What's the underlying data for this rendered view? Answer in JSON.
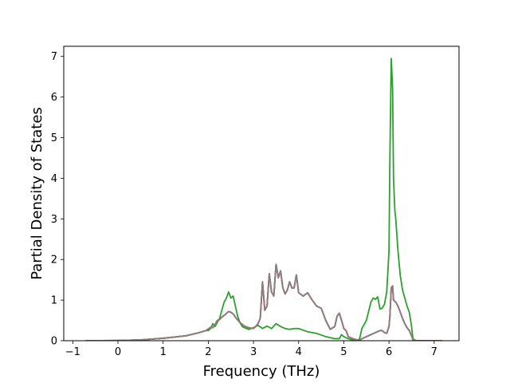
{
  "chart_data": {
    "type": "line",
    "title": "",
    "xlabel": "Frequency (THz)",
    "ylabel": "Partial Density of States",
    "xlim": [
      -1.2,
      7.55
    ],
    "ylim": [
      0,
      7.25
    ],
    "xticks": [
      -1,
      0,
      1,
      2,
      3,
      4,
      5,
      6,
      7
    ],
    "yticks": [
      0,
      1,
      2,
      3,
      4,
      5,
      6,
      7
    ],
    "grid": false,
    "legend": "none",
    "series": [
      {
        "color": "#1f77b4",
        "x": [
          -0.72,
          0.0,
          0.5,
          1.0,
          1.5,
          1.8,
          1.95,
          2.05,
          2.1,
          2.15,
          2.2,
          2.25,
          2.3,
          2.38,
          2.45,
          2.5,
          2.55,
          2.62,
          2.7,
          2.8,
          2.9,
          3.0,
          3.05,
          3.1,
          3.15,
          3.2,
          3.25,
          3.3,
          3.35,
          3.4,
          3.45,
          3.5,
          3.55,
          3.6,
          3.65,
          3.7,
          3.75,
          3.8,
          3.85,
          3.9,
          3.95,
          4.0,
          4.1,
          4.2,
          4.3,
          4.4,
          4.5,
          4.6,
          4.7,
          4.8,
          4.85,
          4.9,
          4.95,
          5.0,
          5.05,
          5.1,
          5.2,
          5.3,
          5.35,
          5.4,
          5.5,
          5.6,
          5.7,
          5.8,
          5.85,
          5.9,
          5.95,
          6.0,
          6.02,
          6.05,
          6.08,
          6.1,
          6.15,
          6.2,
          6.25,
          6.3,
          6.35,
          6.4,
          6.45,
          6.5,
          6.53,
          6.6,
          7.18
        ],
        "y": [
          0.0,
          0.005,
          0.02,
          0.06,
          0.12,
          0.2,
          0.25,
          0.33,
          0.32,
          0.4,
          0.5,
          0.52,
          0.58,
          0.65,
          0.72,
          0.7,
          0.66,
          0.55,
          0.45,
          0.36,
          0.32,
          0.3,
          0.35,
          0.42,
          0.55,
          1.45,
          0.75,
          0.85,
          1.65,
          1.2,
          1.1,
          1.88,
          1.55,
          1.72,
          1.3,
          1.15,
          1.25,
          1.45,
          1.3,
          1.3,
          1.62,
          1.18,
          1.1,
          1.18,
          1.0,
          0.85,
          0.8,
          0.5,
          0.28,
          0.35,
          0.6,
          0.68,
          0.5,
          0.3,
          0.25,
          0.1,
          0.05,
          0.02,
          0.0,
          0.05,
          0.1,
          0.15,
          0.2,
          0.25,
          0.25,
          0.2,
          0.18,
          0.35,
          0.6,
          1.3,
          1.35,
          1.0,
          0.95,
          0.85,
          0.7,
          0.55,
          0.42,
          0.32,
          0.25,
          0.12,
          0.02,
          0.0,
          0.0
        ]
      },
      {
        "color": "#2ca02c",
        "x": [
          -0.72,
          0.0,
          0.5,
          1.0,
          1.5,
          1.8,
          1.95,
          2.0,
          2.05,
          2.1,
          2.15,
          2.2,
          2.25,
          2.3,
          2.35,
          2.4,
          2.45,
          2.5,
          2.55,
          2.6,
          2.65,
          2.7,
          2.75,
          2.8,
          2.9,
          3.0,
          3.1,
          3.2,
          3.3,
          3.4,
          3.5,
          3.6,
          3.7,
          3.8,
          3.9,
          4.0,
          4.2,
          4.4,
          4.6,
          4.8,
          4.9,
          4.95,
          5.0,
          5.1,
          5.2,
          5.3,
          5.35,
          5.4,
          5.5,
          5.6,
          5.65,
          5.7,
          5.75,
          5.8,
          5.85,
          5.9,
          5.95,
          6.0,
          6.02,
          6.05,
          6.08,
          6.1,
          6.13,
          6.15,
          6.2,
          6.25,
          6.3,
          6.35,
          6.4,
          6.45,
          6.5,
          6.53,
          6.6,
          7.18
        ],
        "y": [
          0.0,
          0.005,
          0.02,
          0.06,
          0.12,
          0.2,
          0.25,
          0.25,
          0.3,
          0.42,
          0.35,
          0.45,
          0.55,
          0.75,
          0.95,
          1.05,
          1.2,
          1.05,
          1.1,
          0.85,
          0.6,
          0.45,
          0.35,
          0.32,
          0.28,
          0.32,
          0.38,
          0.3,
          0.36,
          0.3,
          0.42,
          0.35,
          0.3,
          0.28,
          0.3,
          0.3,
          0.22,
          0.18,
          0.1,
          0.05,
          0.05,
          0.15,
          0.1,
          0.05,
          0.02,
          0.0,
          0.05,
          0.3,
          0.5,
          0.95,
          1.05,
          1.02,
          1.08,
          0.78,
          0.8,
          0.9,
          1.2,
          2.2,
          4.5,
          6.95,
          6.2,
          4.0,
          3.2,
          3.0,
          2.2,
          1.6,
          1.25,
          1.05,
          0.85,
          0.7,
          0.35,
          0.05,
          0.0,
          0.0
        ]
      },
      {
        "color": "#d62728",
        "x": [
          -0.72,
          0.0,
          0.5,
          1.0,
          1.5,
          1.8,
          1.95,
          2.05,
          2.1,
          2.15,
          2.2,
          2.25,
          2.3,
          2.38,
          2.45,
          2.5,
          2.55,
          2.62,
          2.7,
          2.8,
          2.9,
          3.0,
          3.05,
          3.1,
          3.15,
          3.2,
          3.25,
          3.3,
          3.35,
          3.4,
          3.45,
          3.5,
          3.55,
          3.6,
          3.65,
          3.7,
          3.75,
          3.8,
          3.85,
          3.9,
          3.95,
          4.0,
          4.1,
          4.2,
          4.3,
          4.4,
          4.5,
          4.6,
          4.7,
          4.8,
          4.85,
          4.9,
          4.95,
          5.0,
          5.05,
          5.1,
          5.2,
          5.3,
          5.35,
          5.4,
          5.5,
          5.6,
          5.7,
          5.8,
          5.85,
          5.9,
          5.95,
          6.0,
          6.02,
          6.05,
          6.08,
          6.1,
          6.15,
          6.2,
          6.25,
          6.3,
          6.35,
          6.4,
          6.45,
          6.5,
          6.53,
          6.6,
          7.18
        ],
        "y": [
          0.0,
          0.005,
          0.02,
          0.06,
          0.12,
          0.2,
          0.25,
          0.33,
          0.32,
          0.4,
          0.5,
          0.52,
          0.58,
          0.65,
          0.72,
          0.7,
          0.66,
          0.55,
          0.45,
          0.36,
          0.32,
          0.3,
          0.35,
          0.42,
          0.55,
          1.45,
          0.75,
          0.85,
          1.65,
          1.2,
          1.1,
          1.88,
          1.55,
          1.72,
          1.3,
          1.15,
          1.25,
          1.45,
          1.3,
          1.3,
          1.62,
          1.18,
          1.1,
          1.18,
          1.0,
          0.85,
          0.8,
          0.5,
          0.28,
          0.35,
          0.6,
          0.68,
          0.5,
          0.3,
          0.25,
          0.1,
          0.05,
          0.02,
          0.0,
          0.05,
          0.1,
          0.15,
          0.2,
          0.25,
          0.25,
          0.2,
          0.18,
          0.35,
          0.6,
          1.3,
          1.35,
          1.0,
          0.95,
          0.85,
          0.7,
          0.55,
          0.42,
          0.32,
          0.25,
          0.12,
          0.02,
          0.0,
          0.0
        ]
      },
      {
        "color": "#8c7f80",
        "x": [
          -0.72,
          0.0,
          0.5,
          1.0,
          1.5,
          1.8,
          1.95,
          2.05,
          2.1,
          2.15,
          2.2,
          2.25,
          2.3,
          2.38,
          2.45,
          2.5,
          2.55,
          2.62,
          2.7,
          2.8,
          2.9,
          3.0,
          3.05,
          3.1,
          3.15,
          3.2,
          3.25,
          3.3,
          3.35,
          3.4,
          3.45,
          3.5,
          3.55,
          3.6,
          3.65,
          3.7,
          3.75,
          3.8,
          3.85,
          3.9,
          3.95,
          4.0,
          4.1,
          4.2,
          4.3,
          4.4,
          4.5,
          4.6,
          4.7,
          4.8,
          4.85,
          4.9,
          4.95,
          5.0,
          5.05,
          5.1,
          5.2,
          5.3,
          5.35,
          5.4,
          5.5,
          5.6,
          5.7,
          5.8,
          5.85,
          5.9,
          5.95,
          6.0,
          6.02,
          6.05,
          6.08,
          6.1,
          6.15,
          6.2,
          6.25,
          6.3,
          6.35,
          6.4,
          6.45,
          6.5,
          6.53,
          6.6,
          7.18
        ],
        "y": [
          0.0,
          0.005,
          0.02,
          0.06,
          0.12,
          0.2,
          0.25,
          0.33,
          0.32,
          0.4,
          0.5,
          0.52,
          0.58,
          0.65,
          0.72,
          0.7,
          0.66,
          0.55,
          0.45,
          0.36,
          0.32,
          0.3,
          0.35,
          0.42,
          0.55,
          1.45,
          0.75,
          0.85,
          1.65,
          1.2,
          1.1,
          1.88,
          1.55,
          1.72,
          1.3,
          1.15,
          1.25,
          1.45,
          1.3,
          1.3,
          1.62,
          1.18,
          1.1,
          1.18,
          1.0,
          0.85,
          0.8,
          0.5,
          0.28,
          0.35,
          0.6,
          0.68,
          0.5,
          0.3,
          0.25,
          0.1,
          0.05,
          0.02,
          0.0,
          0.05,
          0.1,
          0.15,
          0.2,
          0.25,
          0.25,
          0.2,
          0.18,
          0.35,
          0.6,
          1.3,
          1.35,
          1.0,
          0.95,
          0.85,
          0.7,
          0.55,
          0.42,
          0.32,
          0.25,
          0.12,
          0.02,
          0.0,
          0.0
        ]
      }
    ]
  }
}
